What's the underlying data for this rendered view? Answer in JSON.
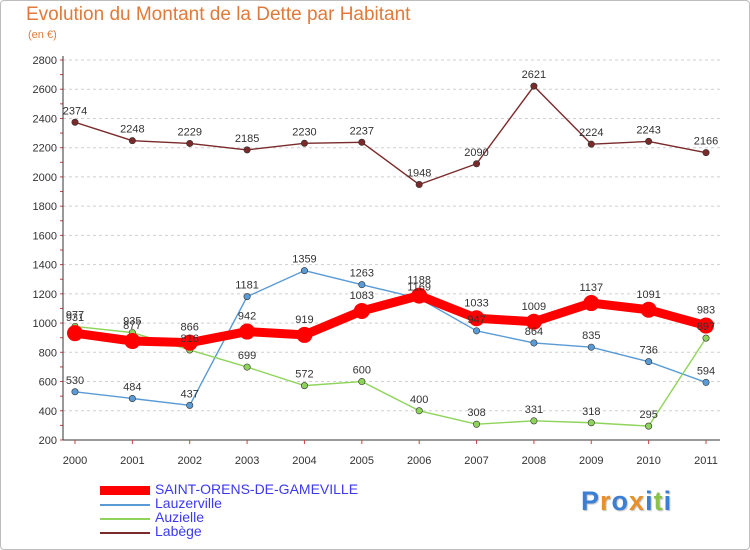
{
  "brand": {
    "name": "Proxiti",
    "letter_colors": [
      "#3a7fd5",
      "#e8902a",
      "#3a7fd5",
      "#e8902a",
      "#3a7fd5",
      "#8bc34a",
      "#3a7fd5"
    ]
  },
  "chart_data": {
    "type": "line",
    "title": "Evolution du Montant de la Dette par Habitant",
    "subtitle": "(en €)",
    "xlabel": "",
    "ylabel": "",
    "categories": [
      "2000",
      "2001",
      "2002",
      "2003",
      "2004",
      "2005",
      "2006",
      "2007",
      "2008",
      "2009",
      "2010",
      "2011"
    ],
    "ylim": [
      200,
      2800
    ],
    "yticks": [
      200,
      400,
      600,
      800,
      1000,
      1200,
      1400,
      1600,
      1800,
      2000,
      2200,
      2400,
      2600,
      2800
    ],
    "grid": "horizontal-dashed",
    "legend_position": "bottom-left",
    "series": [
      {
        "name": "SAINT-ORENS-DE-GAMEVILLE",
        "color": "#ff0000",
        "values": [
          931,
          877,
          866,
          942,
          919,
          1083,
          1188,
          1033,
          1009,
          1137,
          1091,
          983
        ],
        "labels": [
          "931",
          "877",
          "866",
          "942",
          "919",
          "1083",
          "1188",
          "1033",
          "1009",
          "1137",
          "1091",
          "983"
        ]
      },
      {
        "name": "Lauzerville",
        "color": "#5a9bd5",
        "values": [
          530,
          484,
          437,
          1181,
          1359,
          1263,
          1169,
          947,
          864,
          835,
          736,
          594
        ],
        "labels": [
          "530",
          "484",
          "437",
          "1181",
          "1359",
          "1263",
          "1169",
          "947",
          "864",
          "835",
          "736",
          "594"
        ]
      },
      {
        "name": "Auzielle",
        "color": "#8fd45a",
        "values": [
          977,
          935,
          816,
          699,
          572,
          600,
          400,
          308,
          331,
          318,
          295,
          897
        ],
        "labels": [
          "977",
          "935",
          "816",
          "699",
          "572",
          "600",
          "400",
          "308",
          "331",
          "318",
          "295",
          "897"
        ]
      },
      {
        "name": "Labège",
        "color": "#7a2a2a",
        "values": [
          2374,
          2248,
          2229,
          2185,
          2230,
          2237,
          1948,
          2090,
          2621,
          2224,
          2243,
          2166
        ],
        "labels": [
          "2374",
          "2248",
          "2229",
          "2185",
          "2230",
          "2237",
          "1948",
          "2090",
          "2621",
          "2224",
          "2243",
          "2166"
        ]
      }
    ]
  }
}
